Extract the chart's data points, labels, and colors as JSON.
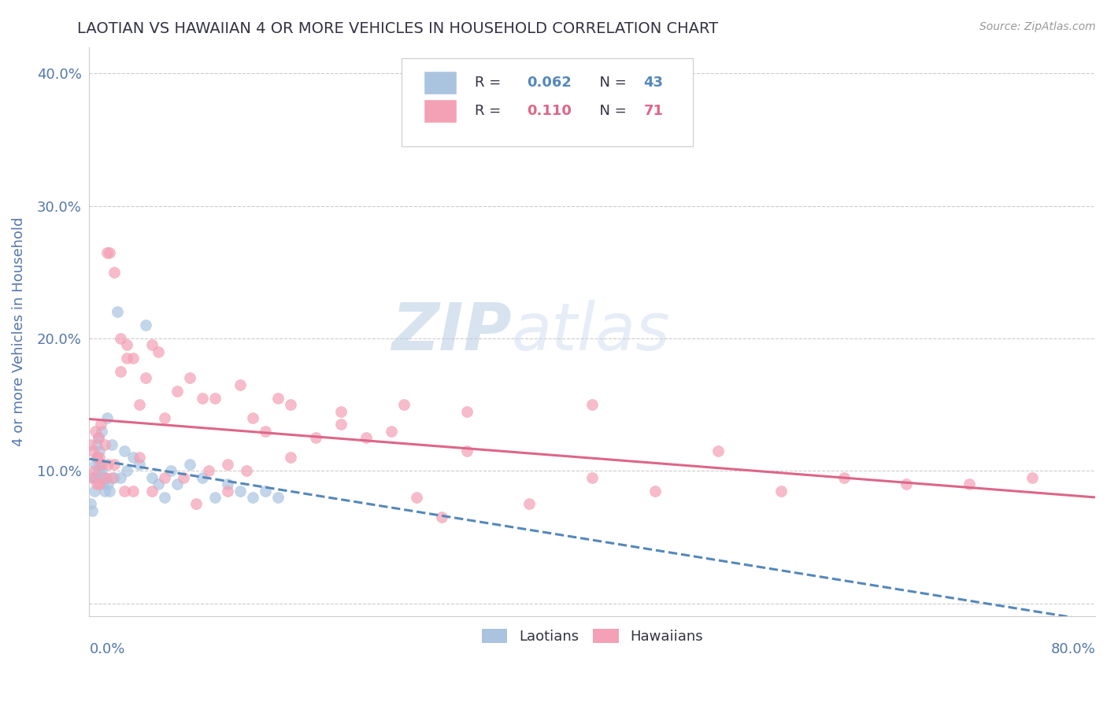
{
  "title": "LAOTIAN VS HAWAIIAN 4 OR MORE VEHICLES IN HOUSEHOLD CORRELATION CHART",
  "source": "Source: ZipAtlas.com",
  "ylabel": "4 or more Vehicles in Household",
  "yticks": [
    0.0,
    0.1,
    0.2,
    0.3,
    0.4
  ],
  "ytick_labels": [
    "",
    "10.0%",
    "20.0%",
    "30.0%",
    "40.0%"
  ],
  "xlim": [
    0.0,
    0.8
  ],
  "ylim": [
    -0.01,
    0.42
  ],
  "watermark_zip": "ZIP",
  "watermark_atlas": "atlas",
  "laotian_color": "#aac4e0",
  "hawaiian_color": "#f4a0b5",
  "laotian_line_color": "#5588bb",
  "hawaiian_line_color": "#dd6688",
  "title_color": "#333344",
  "axis_label_color": "#5577aa",
  "tick_color": "#5577aa",
  "grid_color": "#cccccc",
  "background_color": "#ffffff",
  "laotian_x": [
    0.001,
    0.002,
    0.003,
    0.004,
    0.005,
    0.005,
    0.006,
    0.006,
    0.007,
    0.007,
    0.008,
    0.008,
    0.009,
    0.01,
    0.01,
    0.011,
    0.012,
    0.013,
    0.014,
    0.015,
    0.016,
    0.018,
    0.02,
    0.022,
    0.025,
    0.028,
    0.03,
    0.035,
    0.04,
    0.045,
    0.05,
    0.055,
    0.06,
    0.065,
    0.07,
    0.08,
    0.09,
    0.1,
    0.11,
    0.12,
    0.13,
    0.14,
    0.15
  ],
  "laotian_y": [
    0.075,
    0.07,
    0.095,
    0.085,
    0.095,
    0.105,
    0.12,
    0.11,
    0.1,
    0.125,
    0.105,
    0.115,
    0.095,
    0.1,
    0.13,
    0.09,
    0.085,
    0.095,
    0.14,
    0.09,
    0.085,
    0.12,
    0.095,
    0.22,
    0.095,
    0.115,
    0.1,
    0.11,
    0.105,
    0.21,
    0.095,
    0.09,
    0.08,
    0.1,
    0.09,
    0.105,
    0.095,
    0.08,
    0.09,
    0.085,
    0.08,
    0.085,
    0.08
  ],
  "hawaiian_x": [
    0.001,
    0.002,
    0.003,
    0.004,
    0.005,
    0.006,
    0.007,
    0.008,
    0.009,
    0.01,
    0.012,
    0.014,
    0.016,
    0.018,
    0.02,
    0.025,
    0.025,
    0.03,
    0.03,
    0.035,
    0.04,
    0.045,
    0.05,
    0.055,
    0.06,
    0.07,
    0.08,
    0.09,
    0.1,
    0.11,
    0.12,
    0.13,
    0.15,
    0.16,
    0.18,
    0.2,
    0.22,
    0.24,
    0.26,
    0.28,
    0.3,
    0.35,
    0.4,
    0.45,
    0.5,
    0.55,
    0.6,
    0.65,
    0.7,
    0.75,
    0.006,
    0.008,
    0.012,
    0.015,
    0.02,
    0.028,
    0.035,
    0.04,
    0.05,
    0.06,
    0.075,
    0.085,
    0.095,
    0.11,
    0.125,
    0.14,
    0.16,
    0.2,
    0.25,
    0.3,
    0.4
  ],
  "hawaiian_y": [
    0.12,
    0.095,
    0.115,
    0.1,
    0.13,
    0.11,
    0.125,
    0.09,
    0.135,
    0.105,
    0.095,
    0.265,
    0.265,
    0.095,
    0.25,
    0.175,
    0.2,
    0.185,
    0.195,
    0.185,
    0.15,
    0.17,
    0.195,
    0.19,
    0.14,
    0.16,
    0.17,
    0.155,
    0.155,
    0.105,
    0.165,
    0.14,
    0.155,
    0.11,
    0.125,
    0.135,
    0.125,
    0.13,
    0.08,
    0.065,
    0.115,
    0.075,
    0.095,
    0.085,
    0.115,
    0.085,
    0.095,
    0.09,
    0.09,
    0.095,
    0.09,
    0.11,
    0.12,
    0.105,
    0.105,
    0.085,
    0.085,
    0.11,
    0.085,
    0.095,
    0.095,
    0.075,
    0.1,
    0.085,
    0.1,
    0.13,
    0.15,
    0.145,
    0.15,
    0.145,
    0.15
  ]
}
